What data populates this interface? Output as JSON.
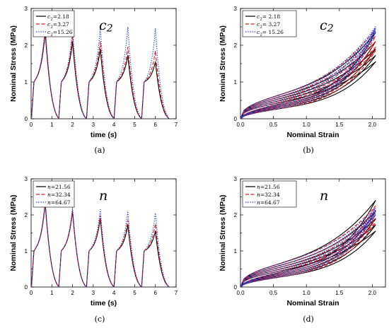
{
  "chart_data": [
    {
      "id": "a",
      "type": "line",
      "caption": "(a)",
      "title_main": "c",
      "title_sub": "2",
      "xlabel": "time (s)",
      "ylabel": "Nominal Stress (MPa)",
      "xlim": [
        0,
        7
      ],
      "ylim": [
        0,
        3
      ],
      "xticks": [
        0,
        1,
        2,
        3,
        4,
        5,
        6,
        7
      ],
      "yticks": [
        0,
        1,
        2,
        3
      ],
      "legend_position": "top-left",
      "cycle_period": 1.33,
      "cycle_peak_times": [
        0.68,
        2.0,
        3.34,
        4.67,
        6.0
      ],
      "series": [
        {
          "name_main": "c",
          "name_sub": "2",
          "name_value": "=2.18",
          "color": "#000000",
          "dash": "solid",
          "peaks": [
            2.35,
            2.1,
            1.9,
            1.72,
            1.55
          ]
        },
        {
          "name_main": "c",
          "name_sub": "2",
          "name_value": "=3.27",
          "color": "#e31a1c",
          "dash": "dashed",
          "peaks": [
            2.45,
            2.25,
            2.1,
            1.95,
            1.85
          ]
        },
        {
          "name_main": "c",
          "name_sub": "2",
          "name_value": "=15.26",
          "color": "#1f3fd6",
          "dash": "dotted",
          "peaks": [
            2.5,
            2.45,
            2.45,
            2.5,
            2.45
          ]
        }
      ]
    },
    {
      "id": "b",
      "type": "line",
      "caption": "(b)",
      "title_main": "c",
      "title_sub": "2",
      "xlabel": "Nominal Strain",
      "ylabel": "Nominal Stress (MPa)",
      "xlim": [
        0,
        2.2
      ],
      "ylim": [
        0,
        3
      ],
      "xticks": [
        0.0,
        0.5,
        1.0,
        1.5,
        2.0
      ],
      "xtick_labels": [
        "0.0",
        "0.5",
        "1.0",
        "1.5",
        "2.0"
      ],
      "yticks": [
        0,
        1,
        2,
        3
      ],
      "legend_position": "top-left",
      "max_strain": 2.05,
      "series": [
        {
          "name_main": "c",
          "name_sub": "2",
          "name_value": "= 2.18",
          "color": "#000000",
          "dash": "solid",
          "peaks": [
            2.35,
            2.1,
            1.9,
            1.72,
            1.55
          ]
        },
        {
          "name_main": "c",
          "name_sub": "2",
          "name_value": "= 3.27",
          "color": "#e31a1c",
          "dash": "dashed",
          "peaks": [
            2.45,
            2.25,
            2.1,
            1.95,
            1.85
          ]
        },
        {
          "name_main": "c",
          "name_sub": "2",
          "name_value": "= 15.26",
          "color": "#1f3fd6",
          "dash": "dotted",
          "peaks": [
            2.5,
            2.45,
            2.4,
            2.4,
            2.35
          ]
        }
      ]
    },
    {
      "id": "c",
      "type": "line",
      "caption": "(c)",
      "title_main": "n",
      "title_sub": "",
      "xlabel": "time (s)",
      "ylabel": "Nominal Stress (MPa)",
      "xlim": [
        0,
        7
      ],
      "ylim": [
        0,
        3
      ],
      "xticks": [
        0,
        1,
        2,
        3,
        4,
        5,
        6,
        7
      ],
      "yticks": [
        0,
        1,
        2,
        3
      ],
      "legend_position": "top-left",
      "cycle_period": 1.33,
      "cycle_peak_times": [
        0.68,
        2.0,
        3.34,
        4.67,
        6.0
      ],
      "series": [
        {
          "name_main": "n",
          "name_sub": "",
          "name_value": "=21.56",
          "color": "#000000",
          "dash": "solid",
          "peaks": [
            2.35,
            2.1,
            1.9,
            1.72,
            1.55
          ]
        },
        {
          "name_main": "n",
          "name_sub": "",
          "name_value": "=32.34",
          "color": "#e31a1c",
          "dash": "dashed",
          "peaks": [
            2.28,
            2.12,
            1.98,
            1.85,
            1.75
          ]
        },
        {
          "name_main": "n",
          "name_sub": "",
          "name_value": "=64.67",
          "color": "#1f3fd6",
          "dash": "dotted",
          "peaks": [
            2.3,
            2.2,
            2.15,
            2.1,
            2.05
          ]
        }
      ]
    },
    {
      "id": "d",
      "type": "line",
      "caption": "(d)",
      "title_main": "n",
      "title_sub": "",
      "xlabel": "Nominal Strain",
      "ylabel": "Nominal Stress (MPa)",
      "xlim": [
        0,
        2.2
      ],
      "ylim": [
        0,
        3
      ],
      "xticks": [
        0.0,
        0.5,
        1.0,
        1.5,
        2.0
      ],
      "xtick_labels": [
        "0.0",
        "0.5",
        "1.0",
        "1.5",
        "2.0"
      ],
      "yticks": [
        0,
        1,
        2,
        3
      ],
      "legend_position": "top-left",
      "max_strain": 2.05,
      "series": [
        {
          "name_main": "n",
          "name_sub": "",
          "name_value": "=21.56",
          "color": "#000000",
          "dash": "solid",
          "peaks": [
            2.4,
            2.1,
            1.9,
            1.72,
            1.55
          ]
        },
        {
          "name_main": "n",
          "name_sub": "",
          "name_value": "=32.34",
          "color": "#e31a1c",
          "dash": "dashed",
          "peaks": [
            2.25,
            2.12,
            2.0,
            1.88,
            1.78
          ]
        },
        {
          "name_main": "n",
          "name_sub": "",
          "name_value": "=64.67",
          "color": "#1f3fd6",
          "dash": "dotted",
          "peaks": [
            2.2,
            2.15,
            2.1,
            2.05,
            2.0
          ]
        }
      ]
    }
  ]
}
